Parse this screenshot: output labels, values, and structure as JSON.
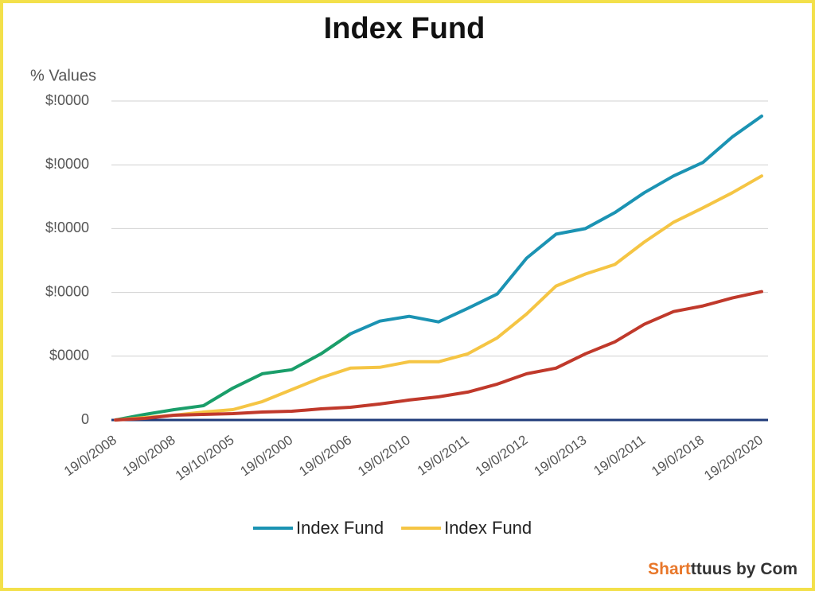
{
  "chart_data": {
    "type": "line",
    "title": "Index Fund",
    "y_axis_label": "% Values",
    "watermark": {
      "brand": "Shart",
      "rest": "ttuus by Com"
    },
    "categories": [
      "19/0/2008",
      null,
      "19/0/2008",
      null,
      "19/10/2005",
      null,
      "19/0/2000",
      null,
      "19/0/2006",
      null,
      "19/0/2010",
      null,
      "19/0/2011",
      null,
      "19/0/2012",
      null,
      "19/0/2013",
      null,
      "19/0/2011",
      null,
      "19/0/2018",
      null,
      "19/20/2020"
    ],
    "series": [
      {
        "color": "#1a9e6a",
        "values": [
          0,
          875,
          1625,
          2250,
          5000,
          7250,
          7875,
          10375,
          13500,
          null,
          null,
          null,
          null,
          null,
          null,
          null,
          null,
          null,
          null,
          null,
          null,
          null,
          null
        ]
      },
      {
        "name": "Index Fund",
        "color": "#1b93b3",
        "values": [
          null,
          null,
          null,
          null,
          null,
          null,
          null,
          null,
          13500,
          15500,
          16250,
          15375,
          17500,
          19750,
          25375,
          29125,
          30000,
          32500,
          35625,
          38250,
          40375,
          44375,
          47625
        ]
      },
      {
        "name": "Index Fund",
        "color": "#f5c544",
        "values": [
          0,
          375,
          750,
          1250,
          1625,
          2875,
          4750,
          6625,
          8125,
          8250,
          9125,
          9125,
          10375,
          12875,
          16625,
          21000,
          22875,
          24375,
          27875,
          31000,
          33250,
          35625,
          38250
        ]
      },
      {
        "color": "#c0392b",
        "values": [
          0,
          250,
          750,
          875,
          1000,
          1250,
          1375,
          1750,
          2000,
          2500,
          3125,
          3625,
          4375,
          5625,
          7250,
          8125,
          10375,
          12250,
          15000,
          17000,
          17875,
          19125,
          20125
        ]
      }
    ],
    "ylim": [
      0,
      50000
    ],
    "yticks": [
      {
        "value": 0,
        "label": "0"
      },
      {
        "value": 10000,
        "label": "$0000"
      },
      {
        "value": 20000,
        "label": "$!0000"
      },
      {
        "value": 30000,
        "label": "$!0000"
      },
      {
        "value": 40000,
        "label": "$!0000"
      },
      {
        "value": 50000,
        "label": "$!0000"
      }
    ],
    "grid": true,
    "legend": "bottom"
  }
}
